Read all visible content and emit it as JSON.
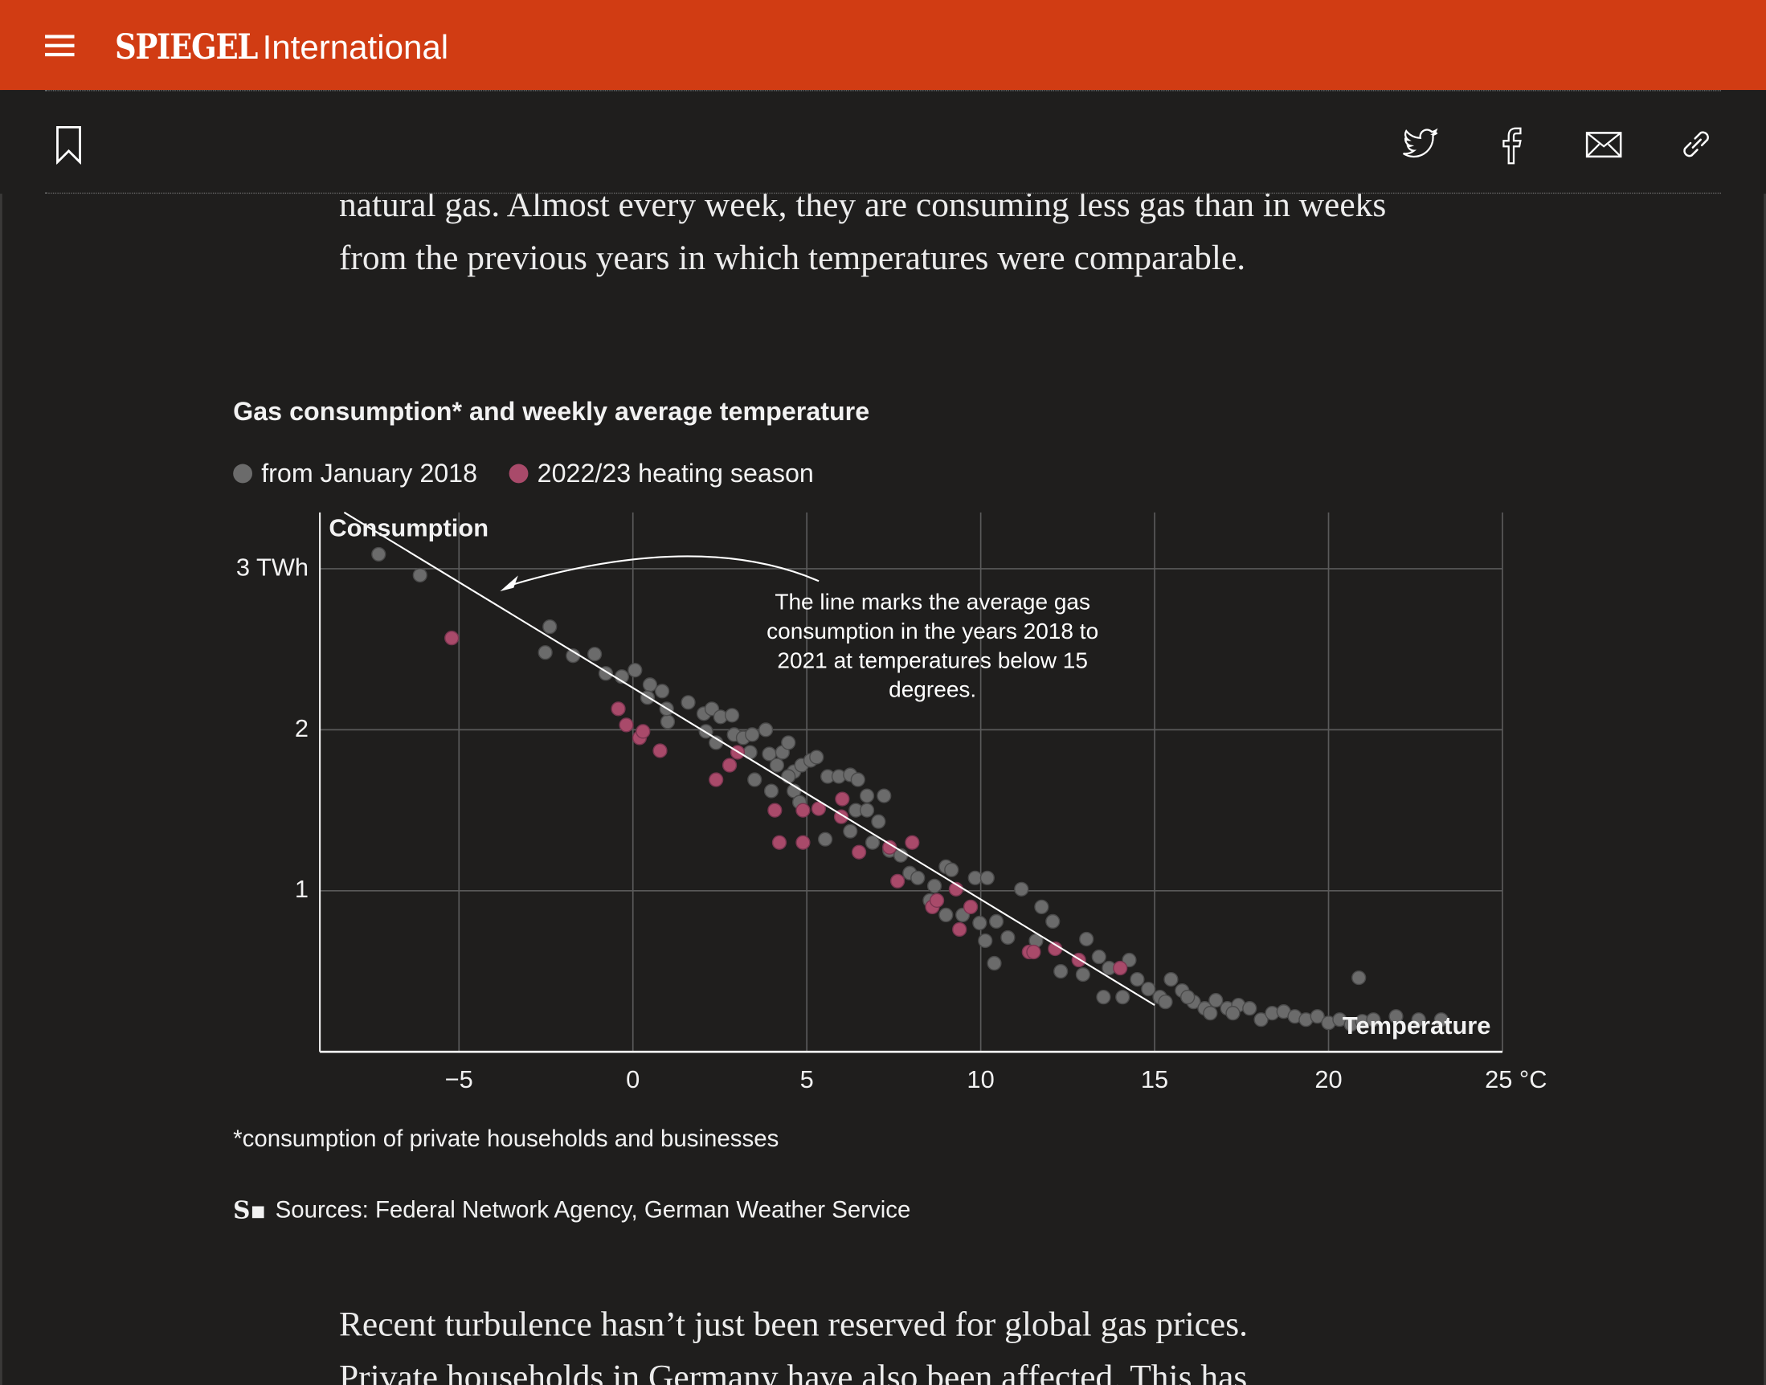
{
  "header": {
    "menu_icon": "hamburger-icon",
    "logo": "SPIEGEL",
    "section": "International",
    "brand_color": "#d13c13"
  },
  "toolbar": {
    "icons": [
      "bookmark-icon",
      "twitter-icon",
      "facebook-icon",
      "mail-icon",
      "link-icon"
    ]
  },
  "article": {
    "para_top": "natural gas. Almost every week, they are consuming less gas than in weeks from the previous years in which temperatures were comparable.",
    "para_bottom": "Recent turbulence hasn’t just been reserved for global gas prices. Private households in Germany have also been affected. This has"
  },
  "chart_data": {
    "type": "scatter",
    "title": "Gas consumption* and weekly average temperature",
    "xlabel": "Temperature",
    "ylabel": "Consumption",
    "xlim": [
      -9,
      25
    ],
    "ylim": [
      0,
      3.35
    ],
    "x_ticks": [
      "−5",
      "0",
      "5",
      "10",
      "15",
      "20",
      "25 °C"
    ],
    "x_tick_values": [
      -5,
      0,
      5,
      10,
      15,
      20,
      25
    ],
    "y_ticks": [
      "1",
      "2",
      "3 TWh"
    ],
    "y_tick_values": [
      1,
      2,
      3
    ],
    "grid": true,
    "legend_position": "top-left",
    "annotation": "The line marks the average gas consumption in the years 2018 to 2021 at temperatures below 15 degrees.",
    "footnote": "*consumption of private households and businesses",
    "source": "Sources: Federal Network Agency, German Weather Service",
    "reference_line": [
      [
        -8.3,
        3.35
      ],
      [
        15,
        0.29
      ]
    ],
    "series": [
      {
        "name": "from January 2018",
        "color": "#6b6b6b",
        "points": [
          [
            -7.31,
            3.09
          ],
          [
            -6.12,
            2.96
          ],
          [
            -2.39,
            2.64
          ],
          [
            -2.52,
            2.48
          ],
          [
            -1.72,
            2.46
          ],
          [
            -1.1,
            2.47
          ],
          [
            -0.78,
            2.35
          ],
          [
            -0.32,
            2.33
          ],
          [
            0.06,
            2.37
          ],
          [
            0.49,
            2.28
          ],
          [
            0.84,
            2.24
          ],
          [
            0.42,
            2.2
          ],
          [
            1.0,
            2.05
          ],
          [
            0.97,
            2.13
          ],
          [
            1.59,
            2.17
          ],
          [
            2.04,
            2.1
          ],
          [
            2.27,
            2.13
          ],
          [
            2.52,
            2.08
          ],
          [
            2.85,
            2.09
          ],
          [
            2.1,
            1.99
          ],
          [
            2.39,
            1.92
          ],
          [
            2.91,
            1.97
          ],
          [
            3.17,
            1.95
          ],
          [
            3.43,
            1.97
          ],
          [
            3.82,
            2.0
          ],
          [
            3.37,
            1.86
          ],
          [
            3.92,
            1.85
          ],
          [
            4.3,
            1.86
          ],
          [
            4.47,
            1.92
          ],
          [
            4.14,
            1.78
          ],
          [
            4.63,
            1.74
          ],
          [
            4.85,
            1.78
          ],
          [
            5.11,
            1.81
          ],
          [
            5.28,
            1.83
          ],
          [
            4.47,
            1.71
          ],
          [
            3.98,
            1.62
          ],
          [
            3.5,
            1.69
          ],
          [
            4.63,
            1.62
          ],
          [
            4.79,
            1.55
          ],
          [
            5.6,
            1.71
          ],
          [
            5.92,
            1.71
          ],
          [
            6.25,
            1.72
          ],
          [
            6.47,
            1.69
          ],
          [
            6.73,
            1.59
          ],
          [
            7.22,
            1.59
          ],
          [
            6.41,
            1.5
          ],
          [
            6.73,
            1.5
          ],
          [
            7.06,
            1.43
          ],
          [
            6.25,
            1.37
          ],
          [
            5.53,
            1.32
          ],
          [
            6.89,
            1.3
          ],
          [
            7.38,
            1.25
          ],
          [
            7.7,
            1.22
          ],
          [
            7.96,
            1.11
          ],
          [
            8.19,
            1.08
          ],
          [
            8.67,
            1.03
          ],
          [
            9.0,
            1.15
          ],
          [
            9.16,
            1.13
          ],
          [
            9.84,
            1.08
          ],
          [
            10.19,
            1.08
          ],
          [
            8.54,
            0.94
          ],
          [
            9.0,
            0.85
          ],
          [
            9.48,
            0.85
          ],
          [
            9.97,
            0.8
          ],
          [
            10.45,
            0.81
          ],
          [
            11.17,
            1.01
          ],
          [
            11.75,
            0.9
          ],
          [
            12.07,
            0.81
          ],
          [
            11.59,
            0.69
          ],
          [
            10.78,
            0.71
          ],
          [
            10.13,
            0.69
          ],
          [
            10.39,
            0.55
          ],
          [
            12.3,
            0.5
          ],
          [
            13.04,
            0.7
          ],
          [
            12.94,
            0.48
          ],
          [
            13.4,
            0.59
          ],
          [
            13.69,
            0.52
          ],
          [
            14.27,
            0.57
          ],
          [
            13.53,
            0.34
          ],
          [
            14.08,
            0.34
          ],
          [
            14.5,
            0.45
          ],
          [
            14.82,
            0.39
          ],
          [
            15.15,
            0.34
          ],
          [
            15.47,
            0.45
          ],
          [
            15.79,
            0.38
          ],
          [
            16.12,
            0.31
          ],
          [
            16.44,
            0.27
          ],
          [
            16.76,
            0.32
          ],
          [
            17.09,
            0.27
          ],
          [
            17.41,
            0.29
          ],
          [
            17.73,
            0.27
          ],
          [
            18.06,
            0.2
          ],
          [
            18.38,
            0.24
          ],
          [
            18.71,
            0.25
          ],
          [
            19.03,
            0.22
          ],
          [
            19.35,
            0.2
          ],
          [
            19.68,
            0.22
          ],
          [
            20.0,
            0.18
          ],
          [
            20.32,
            0.2
          ],
          [
            20.65,
            0.17
          ],
          [
            20.97,
            0.19
          ],
          [
            21.29,
            0.2
          ],
          [
            21.94,
            0.22
          ],
          [
            22.59,
            0.2
          ],
          [
            23.24,
            0.2
          ],
          [
            20.87,
            0.46
          ],
          [
            15.31,
            0.31
          ],
          [
            15.95,
            0.34
          ],
          [
            16.6,
            0.24
          ],
          [
            17.25,
            0.24
          ]
        ]
      },
      {
        "name": "2022/23 heating season",
        "color": "#a94a6a",
        "points": [
          [
            -5.21,
            2.57
          ],
          [
            -0.42,
            2.13
          ],
          [
            -0.19,
            2.03
          ],
          [
            0.19,
            1.95
          ],
          [
            0.29,
            1.99
          ],
          [
            0.78,
            1.87
          ],
          [
            2.39,
            1.69
          ],
          [
            2.78,
            1.78
          ],
          [
            3.01,
            1.86
          ],
          [
            4.08,
            1.5
          ],
          [
            4.21,
            1.3
          ],
          [
            4.89,
            1.3
          ],
          [
            4.89,
            1.5
          ],
          [
            5.34,
            1.51
          ],
          [
            6.02,
            1.57
          ],
          [
            5.99,
            1.46
          ],
          [
            6.5,
            1.24
          ],
          [
            7.38,
            1.27
          ],
          [
            8.03,
            1.3
          ],
          [
            7.61,
            1.06
          ],
          [
            8.61,
            0.9
          ],
          [
            8.74,
            0.94
          ],
          [
            9.29,
            1.01
          ],
          [
            9.39,
            0.76
          ],
          [
            9.71,
            0.9
          ],
          [
            11.39,
            0.62
          ],
          [
            11.52,
            0.62
          ],
          [
            12.14,
            0.64
          ],
          [
            12.82,
            0.57
          ],
          [
            14.01,
            0.52
          ]
        ]
      }
    ]
  }
}
